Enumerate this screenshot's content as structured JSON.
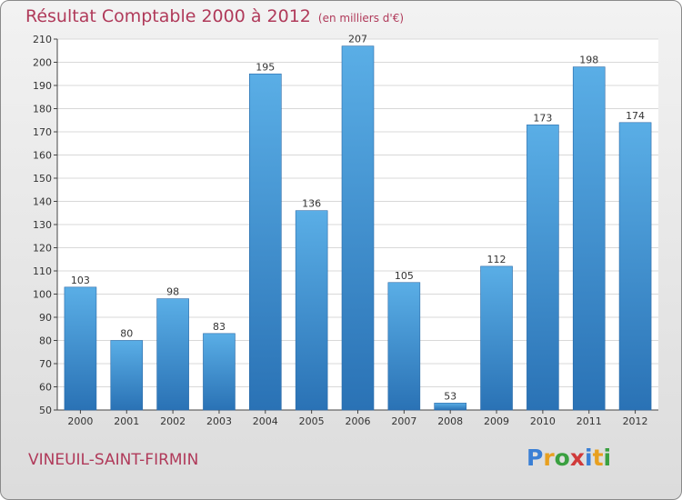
{
  "title": "Résultat Comptable 2000 à 2012",
  "subtitle": "(en milliers d'€)",
  "location": "VINEUIL-SAINT-FIRMIN",
  "brand": {
    "letters": [
      "P",
      "r",
      "o",
      "x",
      "i",
      "t",
      "i"
    ],
    "colors": [
      "#3a7fd5",
      "#e8a020",
      "#3aa040",
      "#d03a3a",
      "#3a7fd5",
      "#e8a020",
      "#3aa040"
    ]
  },
  "colors": {
    "bar_top": "#5aaee6",
    "bar_bottom": "#2a72b5",
    "accent": "#b03a5a"
  },
  "chart_data": {
    "type": "bar",
    "categories": [
      "2000",
      "2001",
      "2002",
      "2003",
      "2004",
      "2005",
      "2006",
      "2007",
      "2008",
      "2009",
      "2010",
      "2011",
      "2012"
    ],
    "values": [
      103,
      80,
      98,
      83,
      195,
      136,
      207,
      105,
      53,
      112,
      173,
      198,
      174
    ],
    "ylim": [
      50,
      210
    ],
    "yticks": [
      50,
      60,
      70,
      80,
      90,
      100,
      110,
      120,
      130,
      140,
      150,
      160,
      170,
      180,
      190,
      200,
      210
    ],
    "grid": true,
    "data_labels": true
  }
}
